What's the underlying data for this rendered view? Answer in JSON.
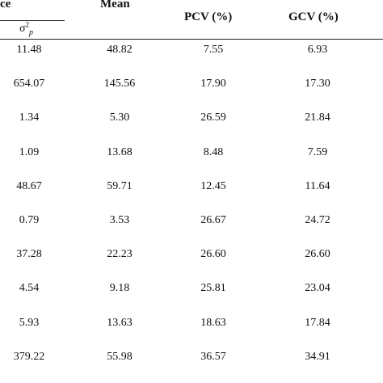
{
  "header": {
    "variance_partial": "ce",
    "mean": "Mean",
    "pcv": "PCV (%)",
    "gcv": "GCV (%)",
    "sub_sigma": "σ",
    "sub_sup": "2",
    "sub_p": "p"
  },
  "rows": [
    {
      "variance": "11.48",
      "mean": "48.82",
      "pcv": "7.55",
      "gcv": "6.93"
    },
    {
      "variance": "654.07",
      "mean": "145.56",
      "pcv": "17.90",
      "gcv": "17.30"
    },
    {
      "variance": "1.34",
      "mean": "5.30",
      "pcv": "26.59",
      "gcv": "21.84"
    },
    {
      "variance": "1.09",
      "mean": "13.68",
      "pcv": "8.48",
      "gcv": "7.59"
    },
    {
      "variance": "48.67",
      "mean": "59.71",
      "pcv": "12.45",
      "gcv": "11.64"
    },
    {
      "variance": "0.79",
      "mean": "3.53",
      "pcv": "26.67",
      "gcv": "24.72"
    },
    {
      "variance": "37.28",
      "mean": "22.23",
      "pcv": "26.60",
      "gcv": "26.60"
    },
    {
      "variance": "4.54",
      "mean": "9.18",
      "pcv": "25.81",
      "gcv": "23.04"
    },
    {
      "variance": "5.93",
      "mean": "13.63",
      "pcv": "18.63",
      "gcv": "17.84"
    },
    {
      "variance": "379.22",
      "mean": "55.98",
      "pcv": "36.57",
      "gcv": "34.91"
    }
  ]
}
